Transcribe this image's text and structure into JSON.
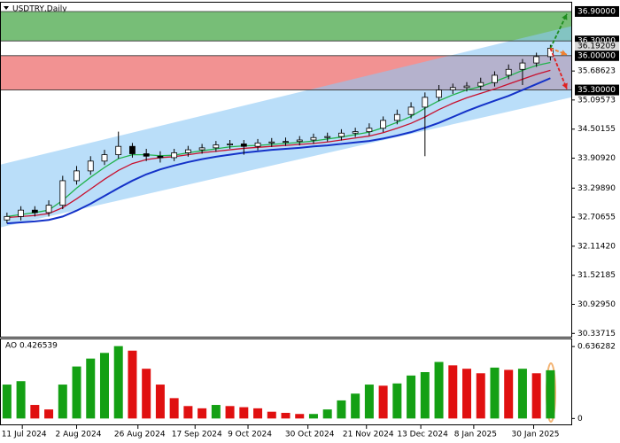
{
  "chart_data": [
    {
      "type": "candlestick",
      "title": "USDTRY,Daily",
      "candles": {
        "up_color": "#ffffff",
        "down_color": "#000000",
        "open": [
          32.65,
          32.72,
          32.85,
          32.8,
          32.95,
          33.45,
          33.65,
          33.85,
          33.98,
          34.15,
          34.0,
          33.95,
          33.92,
          34.02,
          34.08,
          34.12,
          34.18,
          34.2,
          34.15,
          34.22,
          34.24,
          34.25,
          34.28,
          34.33,
          34.35,
          34.42,
          34.45,
          34.52,
          34.68,
          34.8,
          34.95,
          35.15,
          35.3,
          35.35,
          35.38,
          35.45,
          35.6,
          35.72,
          35.85,
          35.98
        ],
        "high": [
          32.8,
          32.93,
          32.93,
          33.05,
          33.55,
          33.75,
          33.95,
          34.08,
          34.45,
          34.22,
          34.1,
          34.05,
          34.1,
          34.16,
          34.2,
          34.26,
          34.28,
          34.28,
          34.3,
          34.32,
          34.33,
          34.36,
          34.41,
          34.43,
          34.5,
          34.53,
          34.62,
          34.76,
          34.9,
          35.05,
          35.25,
          35.4,
          35.43,
          35.46,
          35.55,
          35.68,
          35.82,
          35.93,
          36.06,
          36.22
        ],
        "low": [
          32.58,
          32.64,
          32.72,
          32.72,
          32.87,
          33.37,
          33.57,
          33.77,
          33.9,
          33.92,
          33.85,
          33.82,
          33.85,
          33.94,
          34.0,
          34.04,
          34.1,
          33.98,
          34.07,
          34.14,
          34.16,
          34.17,
          34.2,
          34.25,
          34.27,
          34.34,
          34.37,
          34.44,
          34.6,
          34.72,
          33.95,
          35.07,
          35.22,
          35.27,
          35.3,
          35.37,
          35.52,
          35.4,
          35.77,
          35.9
        ],
        "close": [
          32.72,
          32.85,
          32.8,
          32.95,
          33.45,
          33.65,
          33.85,
          33.98,
          34.15,
          34.0,
          33.95,
          33.92,
          34.02,
          34.08,
          34.12,
          34.18,
          34.2,
          34.15,
          34.22,
          34.24,
          34.25,
          34.28,
          34.33,
          34.35,
          34.42,
          34.45,
          34.52,
          34.68,
          34.8,
          34.95,
          35.15,
          35.3,
          35.35,
          35.38,
          35.45,
          35.6,
          35.72,
          35.85,
          35.98,
          36.15
        ]
      },
      "series": [
        {
          "color": "#22b24c",
          "values": [
            32.72,
            32.76,
            32.8,
            32.85,
            33.05,
            33.3,
            33.52,
            33.72,
            33.9,
            33.98,
            33.98,
            33.96,
            33.97,
            34.02,
            34.06,
            34.1,
            34.14,
            34.16,
            34.17,
            34.19,
            34.21,
            34.23,
            34.26,
            34.3,
            34.34,
            34.39,
            34.44,
            34.53,
            34.64,
            34.76,
            34.93,
            35.08,
            35.2,
            35.3,
            35.37,
            35.47,
            35.58,
            35.7,
            35.8,
            35.86
          ]
        },
        {
          "color": "#c8102e",
          "values": [
            32.7,
            32.72,
            32.74,
            32.78,
            32.9,
            33.08,
            33.28,
            33.48,
            33.66,
            33.8,
            33.88,
            33.92,
            33.94,
            33.98,
            34.02,
            34.05,
            34.08,
            34.11,
            34.13,
            34.15,
            34.17,
            34.19,
            34.21,
            34.24,
            34.28,
            34.32,
            34.36,
            34.43,
            34.52,
            34.62,
            34.75,
            34.9,
            35.03,
            35.14,
            35.23,
            35.32,
            35.42,
            35.52,
            35.62,
            35.7
          ]
        },
        {
          "color": "#1432c8",
          "values": [
            32.58,
            32.6,
            32.62,
            32.65,
            32.72,
            32.84,
            32.98,
            33.14,
            33.3,
            33.45,
            33.58,
            33.68,
            33.76,
            33.83,
            33.89,
            33.94,
            33.98,
            34.02,
            34.05,
            34.08,
            34.1,
            34.12,
            34.15,
            34.17,
            34.2,
            34.23,
            34.26,
            34.31,
            34.37,
            34.44,
            34.53,
            34.63,
            34.75,
            34.87,
            34.98,
            35.08,
            35.18,
            35.3,
            35.42,
            35.54
          ]
        }
      ],
      "channel": {
        "color": "#8cc8f5",
        "upper": [
          33.78,
          36.6
        ],
        "lower": [
          32.5,
          35.15
        ]
      },
      "zones": [
        {
          "color": "#5fb35f",
          "from": 36.3,
          "to": 36.9
        },
        {
          "color": "#f07f7f",
          "from": 35.3,
          "to": 36.0
        }
      ],
      "levels": [
        {
          "value": 36.9,
          "label": "36.90000"
        },
        {
          "value": 36.3,
          "label": "36.30000"
        },
        {
          "value": 36.0,
          "label": "36.00000"
        },
        {
          "value": 35.3,
          "label": "35.30000"
        }
      ],
      "price_label": 36.19209,
      "forecast": [
        {
          "color": "#1e8c1e",
          "to": 36.85
        },
        {
          "color": "#f08030",
          "to": 36.02
        },
        {
          "color": "#e02020",
          "to": 35.32
        }
      ],
      "xlim": [
        -0.5,
        40.5
      ],
      "xticks": [
        {
          "value": 1.1,
          "label": "11 Jul 2024"
        },
        {
          "value": 5.0,
          "label": "2 Aug 2024"
        },
        {
          "value": 9.4,
          "label": "26 Aug 2024"
        },
        {
          "value": 13.5,
          "label": "17 Sep 2024"
        },
        {
          "value": 17.3,
          "label": "9 Oct 2024"
        },
        {
          "value": 21.6,
          "label": "30 Oct 2024"
        },
        {
          "value": 25.8,
          "label": "21 Nov 2024"
        },
        {
          "value": 29.7,
          "label": "13 Dec 2024"
        },
        {
          "value": 33.5,
          "label": "8 Jan 2025"
        },
        {
          "value": 37.8,
          "label": "30 Jan 2025"
        }
      ],
      "ylim": [
        30.27,
        37.08
      ],
      "yticks": [
        35.68623,
        35.09573,
        34.50155,
        {
          "value": 33.9092,
          "label": "33.90920"
        },
        {
          "value": 33.2989,
          "label": "33.29890"
        },
        32.70655,
        {
          "value": 32.1142,
          "label": "32.11420"
        },
        31.52185,
        {
          "value": 30.9295,
          "label": "30.92950"
        },
        30.33715
      ]
    },
    {
      "type": "bar",
      "label": "AO 0.426539",
      "up_color": "#14a014",
      "down_color": "#e01010",
      "values": [
        0.3,
        0.33,
        0.12,
        0.08,
        0.3,
        0.46,
        0.53,
        0.58,
        0.64,
        0.6,
        0.44,
        0.3,
        0.18,
        0.11,
        0.09,
        0.12,
        0.11,
        0.1,
        0.09,
        0.06,
        0.05,
        0.04,
        0.04,
        0.08,
        0.16,
        0.22,
        0.3,
        0.29,
        0.31,
        0.38,
        0.41,
        0.5,
        0.47,
        0.44,
        0.4,
        0.45,
        0.43,
        0.44,
        0.4,
        0.426539
      ],
      "ylim": [
        -0.06,
        0.7
      ],
      "yticks": [
        0.636282,
        0
      ]
    }
  ]
}
